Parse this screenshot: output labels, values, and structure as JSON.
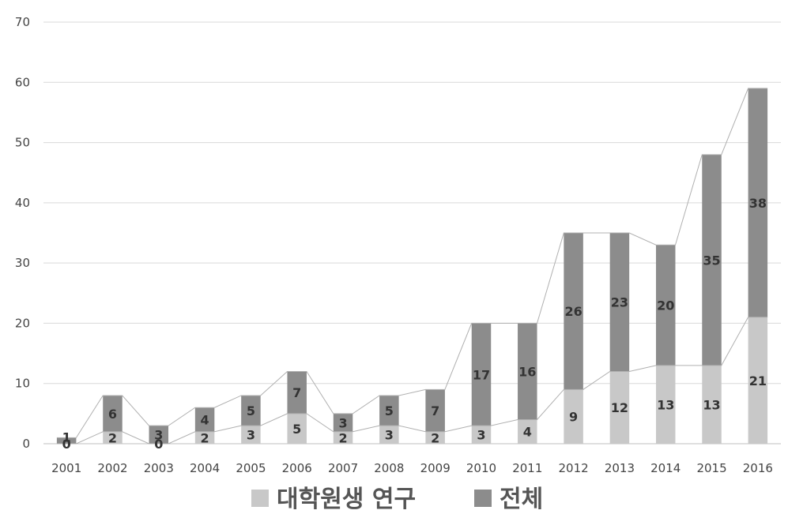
{
  "chart_data": {
    "type": "bar",
    "stacked": true,
    "categories": [
      "2001",
      "2002",
      "2003",
      "2004",
      "2005",
      "2006",
      "2007",
      "2008",
      "2009",
      "2010",
      "2011",
      "2012",
      "2013",
      "2014",
      "2015",
      "2016"
    ],
    "series": [
      {
        "name": "대학원생 연구",
        "values": [
          0,
          2,
          0,
          2,
          3,
          5,
          2,
          3,
          2,
          3,
          4,
          9,
          12,
          13,
          13,
          21
        ],
        "color": "#c8c8c8"
      },
      {
        "name": "전체",
        "values": [
          1,
          6,
          3,
          4,
          5,
          7,
          3,
          5,
          7,
          17,
          16,
          26,
          23,
          20,
          35,
          38
        ],
        "color": "#8c8c8c"
      }
    ],
    "ylim": [
      0,
      70
    ],
    "yticks": [
      0,
      10,
      20,
      30,
      40,
      50,
      60,
      70
    ],
    "grid": true,
    "series_lines": true,
    "legend_position": "bottom"
  }
}
